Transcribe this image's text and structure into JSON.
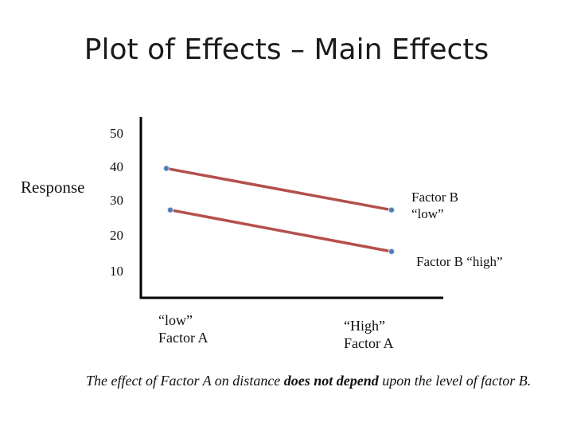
{
  "slide": {
    "title": "Plot of Effects – Main Effects",
    "caption_parts": [
      "The effect of Factor A on distance ",
      "does not depend",
      " upon the level of factor B."
    ]
  },
  "chart_data": {
    "type": "line",
    "ylabel": "Response",
    "yticks": [
      "50",
      "40",
      "30",
      "20",
      "10"
    ],
    "ylim": [
      10,
      50
    ],
    "categories": [
      "“low”\nFactor A",
      "“High”\nFactor A"
    ],
    "series": [
      {
        "name": "Factor B\n“low”",
        "values": [
          40,
          28
        ],
        "color": "#b5504c"
      },
      {
        "name": "Factor B “high”",
        "values": [
          28,
          16
        ],
        "color": "#b5504c"
      }
    ],
    "marker_color": "#4f7fb8",
    "axis_color": "#000000",
    "grid": false
  }
}
